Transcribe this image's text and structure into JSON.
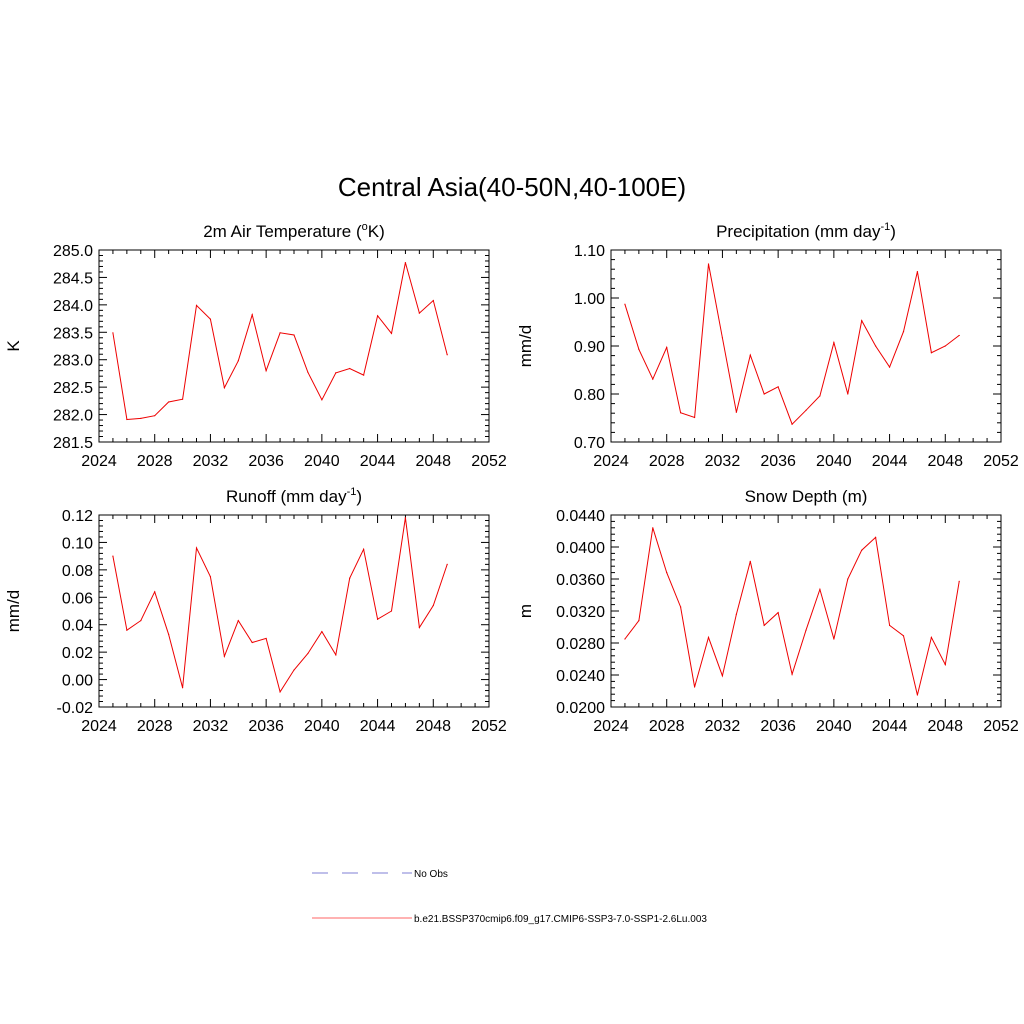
{
  "figure": {
    "title": "Central Asia(40-50N,40-100E)"
  },
  "legend": {
    "entries": [
      {
        "label": "No Obs",
        "color": "#9999dd",
        "style": "dashed"
      },
      {
        "label": "b.e21.BSSP370cmip6.f09_g17.CMIP6-SSP3-7.0-SSP1-2.6Lu.003",
        "color": "#ff6666",
        "style": "solid"
      }
    ]
  },
  "chart_data": [
    {
      "type": "line",
      "title_main": "2m Air Temperature (",
      "title_sup": "o",
      "title_end": "K)",
      "ylabel": "K",
      "xlim": [
        2024,
        2052
      ],
      "xticks": [
        2024,
        2028,
        2032,
        2036,
        2040,
        2044,
        2048,
        2052
      ],
      "ylim": [
        281.5,
        285.0
      ],
      "yticks": [
        "281.5",
        "282.0",
        "282.5",
        "283.0",
        "283.5",
        "284.0",
        "284.5",
        "285.0"
      ],
      "color": "#ee0000",
      "x": [
        2025,
        2026,
        2027,
        2028,
        2029,
        2030,
        2031,
        2032,
        2033,
        2034,
        2035,
        2036,
        2037,
        2038,
        2039,
        2040,
        2041,
        2042,
        2043,
        2044,
        2045,
        2046,
        2047,
        2048,
        2049
      ],
      "values": [
        283.49,
        281.91,
        281.93,
        281.98,
        282.23,
        282.28,
        283.99,
        283.74,
        282.49,
        282.98,
        283.82,
        282.8,
        283.49,
        283.45,
        282.77,
        282.27,
        282.76,
        282.84,
        282.72,
        283.8,
        283.48,
        284.77,
        283.85,
        284.08,
        283.09
      ]
    },
    {
      "type": "line",
      "title_main": "Precipitation (mm day",
      "title_sup": "-1",
      "title_end": ")",
      "ylabel": "mm/d",
      "xlim": [
        2024,
        2052
      ],
      "xticks": [
        2024,
        2028,
        2032,
        2036,
        2040,
        2044,
        2048,
        2052
      ],
      "ylim": [
        0.7,
        1.1
      ],
      "yticks": [
        "0.70",
        "0.80",
        "0.90",
        "1.00",
        "1.10"
      ],
      "color": "#ee0000",
      "x": [
        2025,
        2026,
        2027,
        2028,
        2029,
        2030,
        2031,
        2032,
        2033,
        2034,
        2035,
        2036,
        2037,
        2038,
        2039,
        2040,
        2041,
        2042,
        2043,
        2044,
        2045,
        2046,
        2047,
        2048,
        2049
      ],
      "values": [
        0.987,
        0.893,
        0.831,
        0.897,
        0.761,
        0.751,
        1.071,
        0.917,
        0.762,
        0.881,
        0.8,
        0.815,
        0.737,
        0.766,
        0.796,
        0.907,
        0.8,
        0.953,
        0.9,
        0.856,
        0.93,
        1.055,
        0.886,
        0.9,
        0.922
      ]
    },
    {
      "type": "line",
      "title_main": "Runoff (mm day",
      "title_sup": "-1",
      "title_end": ")",
      "ylabel": "mm/d",
      "xlim": [
        2024,
        2052
      ],
      "xticks": [
        2024,
        2028,
        2032,
        2036,
        2040,
        2044,
        2048,
        2052
      ],
      "ylim": [
        -0.02,
        0.12
      ],
      "yticks": [
        "-0.02",
        "0.00",
        "0.02",
        "0.04",
        "0.06",
        "0.08",
        "0.10",
        "0.12"
      ],
      "color": "#ee0000",
      "x": [
        2025,
        2026,
        2027,
        2028,
        2029,
        2030,
        2031,
        2032,
        2033,
        2034,
        2035,
        2036,
        2037,
        2038,
        2039,
        2040,
        2041,
        2042,
        2043,
        2044,
        2045,
        2046,
        2047,
        2048,
        2049
      ],
      "values": [
        0.09,
        0.036,
        0.043,
        0.064,
        0.033,
        -0.006,
        0.096,
        0.075,
        0.017,
        0.043,
        0.027,
        0.03,
        -0.009,
        0.007,
        0.019,
        0.035,
        0.018,
        0.074,
        0.095,
        0.044,
        0.05,
        0.118,
        0.038,
        0.054,
        0.084
      ]
    },
    {
      "type": "line",
      "title_main": "Snow Depth (m)",
      "title_sup": "",
      "title_end": "",
      "ylabel": "m",
      "xlim": [
        2024,
        2052
      ],
      "xticks": [
        2024,
        2028,
        2032,
        2036,
        2040,
        2044,
        2048,
        2052
      ],
      "ylim": [
        0.02,
        0.044
      ],
      "yticks": [
        "0.0200",
        "0.0240",
        "0.0280",
        "0.0320",
        "0.0360",
        "0.0400",
        "0.0440"
      ],
      "color": "#ee0000",
      "x": [
        2025,
        2026,
        2027,
        2028,
        2029,
        2030,
        2031,
        2032,
        2033,
        2034,
        2035,
        2036,
        2037,
        2038,
        2039,
        2040,
        2041,
        2042,
        2043,
        2044,
        2045,
        2046,
        2047,
        2048,
        2049
      ],
      "values": [
        0.0285,
        0.0308,
        0.0424,
        0.0368,
        0.0325,
        0.0225,
        0.0287,
        0.0239,
        0.0316,
        0.0382,
        0.0302,
        0.0318,
        0.0241,
        0.0296,
        0.0347,
        0.0285,
        0.036,
        0.0396,
        0.0412,
        0.0302,
        0.0289,
        0.0215,
        0.0287,
        0.0253,
        0.0357
      ]
    }
  ]
}
